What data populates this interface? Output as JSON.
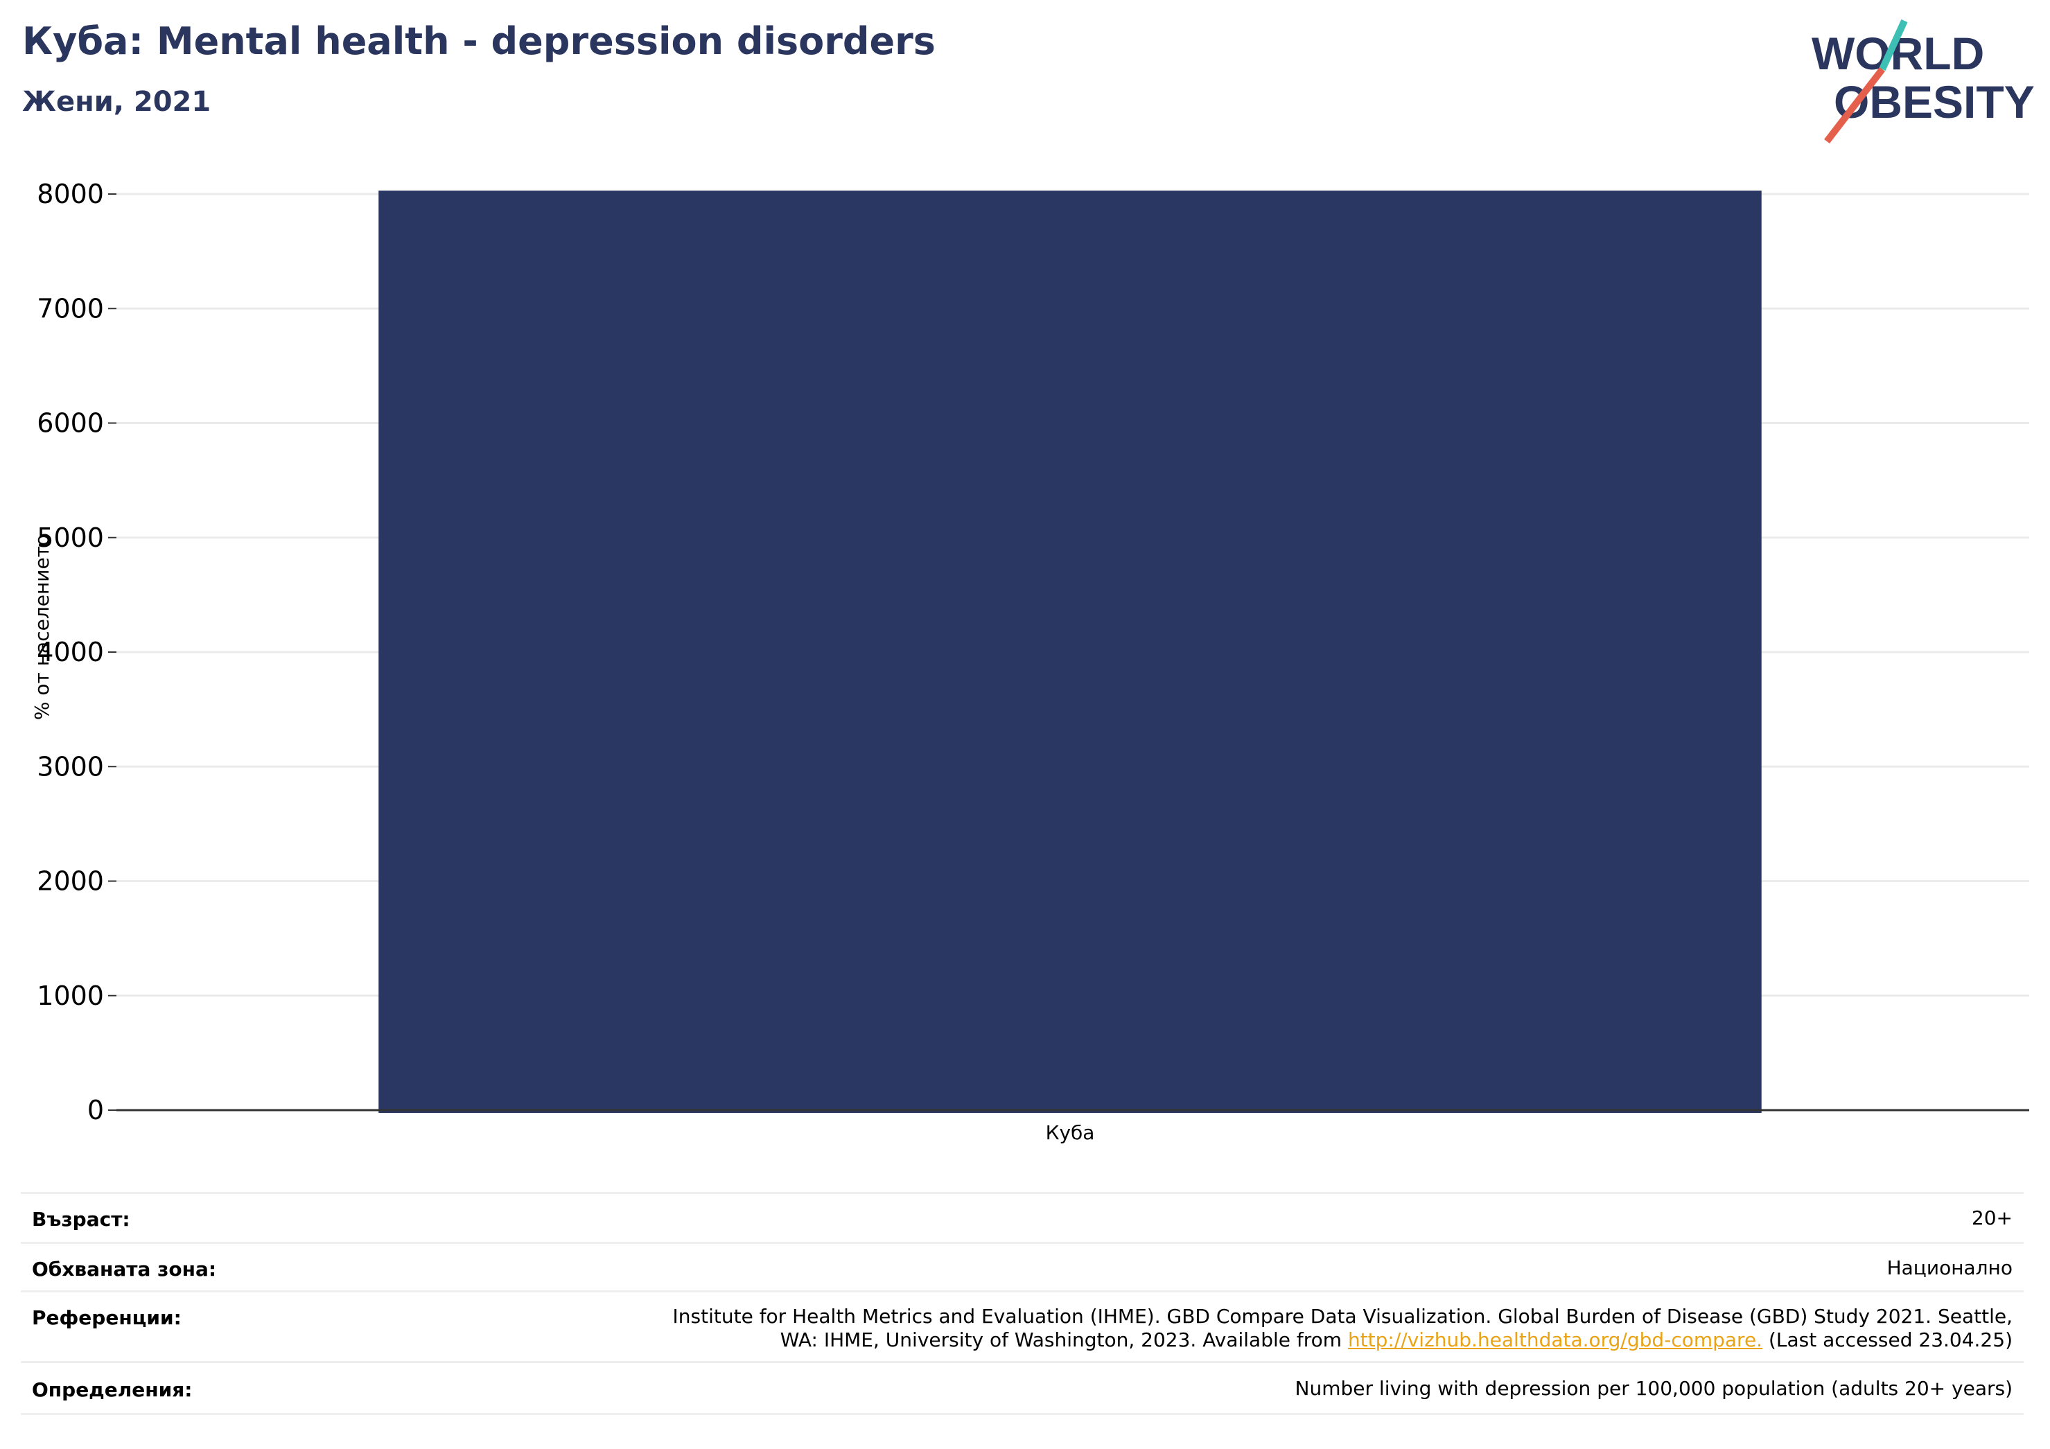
{
  "header": {
    "title": "Куба: Mental health - depression disorders",
    "subtitle": "Жени, 2021"
  },
  "logo": {
    "line1": "WORLD",
    "line2": "OBESITY",
    "colors": {
      "text": "#2b365f",
      "slash_top": "#3dbfb3",
      "slash_bottom": "#e5604c"
    }
  },
  "chart_data": {
    "type": "bar",
    "categories": [
      "Куба"
    ],
    "values": [
      8030
    ],
    "ylabel": "% от населението",
    "xlabel": "",
    "ylim": [
      0,
      8000
    ],
    "yticks": [
      0,
      1000,
      2000,
      3000,
      4000,
      5000,
      6000,
      7000,
      8000
    ],
    "grid": true,
    "colors": {
      "bar": "#2b3763",
      "grid": "#ebebeb",
      "axis": "#333333"
    }
  },
  "meta": {
    "age_label": "Възраст:",
    "age_value": "20+",
    "area_label": "Обхваната зона:",
    "area_value": "Национално",
    "refs_label": "Референции:",
    "refs_line1": "Institute for Health Metrics and Evaluation (IHME). GBD Compare Data Visualization. Global Burden of Disease (GBD) Study 2021. Seattle,",
    "refs_line2_pre": "WA: IHME, University of Washington, 2023. Available from ",
    "refs_link": "http://vizhub.healthdata.org/gbd-compare.",
    "refs_line2_post": " (Last accessed 23.04.25)",
    "defs_label": "Определения:",
    "defs_value": "Number living with depression per 100,000 population (adults 20+ years)"
  }
}
